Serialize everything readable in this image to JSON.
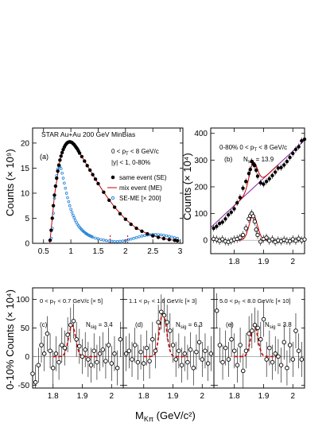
{
  "panels": {
    "a": {
      "header": "STAR Au+Au 200 GeV MinBias",
      "tag": "(a)",
      "cut1": "0 < p",
      "cut1_sub": "T",
      "cut1_tail": " < 8 GeV/c",
      "cut2": "|y| < 1,  0-80%",
      "ylabel": "Counts (× 10⁹)",
      "xticks": [
        "0.5",
        "1",
        "1.5",
        "2",
        "2.5",
        "3"
      ],
      "yticks": [
        "0",
        "5",
        "10",
        "15",
        "20"
      ],
      "legend": [
        "same event (SE)",
        "mix event (ME)",
        "SE-ME [× 200]"
      ]
    },
    "b": {
      "tag": "(b)",
      "cut": "0-80%   0 < p",
      "cut_sub": "T",
      "cut_tail": " < 8 GeV/c",
      "nsig_label": "N",
      "nsig_sub": "sig",
      "nsig_value": " = 13.9",
      "ylabel": "Counts (× 10⁴)",
      "xticks": [
        "1.8",
        "1.9",
        "2"
      ],
      "yticks": [
        "0",
        "100",
        "200",
        "300",
        "400"
      ]
    },
    "lower": {
      "ylabel": "0-10% Counts (× 10⁴)",
      "yticks": [
        "-50",
        "0",
        "50",
        "100"
      ],
      "xticks": [
        "1.8",
        "1.9",
        "2"
      ],
      "xlabel": "M",
      "xlabel_sub": "Kπ",
      "xlabel_tail": " (GeV/c²)",
      "c": {
        "tag": "(c)",
        "cut": "0 < p",
        "cut_sub": "T",
        "cut_tail": " < 0.7 GeV/c [× 5]",
        "nsig_label": "N",
        "nsig_sub": "sig",
        "nsig_value": " = 3.4"
      },
      "d": {
        "tag": "(d)",
        "cut": "1.1 < p",
        "cut_sub": "T",
        "cut_tail": " < 1.6 GeV/c [× 3]",
        "nsig_label": "N",
        "nsig_sub": "sig",
        "nsig_value": " = 6.3"
      },
      "e": {
        "tag": "(e)",
        "cut": "5.0 < p",
        "cut_sub": "T",
        "cut_tail": " < 8.0 GeV/c [× 10]",
        "nsig_label": "N",
        "nsig_sub": "sig",
        "nsig_value": " = 3.8"
      }
    }
  },
  "colors": {
    "same_event": "#000000",
    "mix_event": "#cc0000",
    "se_me": "#1a7fd6",
    "fit": "#cc0000",
    "bg_fit": "#8a1fa8"
  },
  "chart_data": [
    {
      "type": "scatter",
      "panel": "a",
      "xlim": [
        0.3,
        3.05
      ],
      "ylim": [
        0,
        23
      ],
      "series": [
        {
          "name": "same event (SE)",
          "x": [
            0.62,
            0.64,
            0.66,
            0.68,
            0.7,
            0.72,
            0.74,
            0.76,
            0.78,
            0.8,
            0.82,
            0.84,
            0.86,
            0.88,
            0.9,
            0.92,
            0.94,
            0.96,
            0.98,
            1.0,
            1.02,
            1.04,
            1.06,
            1.08,
            1.1,
            1.12,
            1.14,
            1.16,
            1.2,
            1.25,
            1.3,
            1.35,
            1.4,
            1.45,
            1.5,
            1.6,
            1.7,
            1.8,
            1.9,
            2.0,
            2.1,
            2.2,
            2.3,
            2.4,
            2.5,
            2.6,
            2.7,
            2.8,
            2.9,
            2.95
          ],
          "y": [
            0.6,
            2.6,
            5.0,
            7.5,
            9.6,
            11.4,
            13.0,
            14.4,
            15.6,
            16.6,
            17.4,
            18.1,
            18.7,
            19.2,
            19.6,
            19.9,
            20.1,
            20.2,
            20.25,
            20.2,
            20.1,
            19.9,
            19.7,
            19.4,
            19.1,
            18.8,
            18.4,
            18.0,
            17.3,
            16.4,
            15.5,
            14.6,
            13.7,
            12.8,
            11.9,
            10.2,
            8.6,
            7.2,
            5.9,
            4.8,
            3.8,
            3.0,
            2.4,
            1.9,
            1.5,
            1.2,
            0.95,
            0.75,
            0.6,
            0.5
          ]
        },
        {
          "name": "mix event (ME)",
          "x": [
            0.6,
            0.61,
            0.62,
            0.7,
            0.8,
            0.9,
            1.0,
            1.1,
            1.2,
            1.4,
            1.6,
            1.8,
            2.0,
            2.2,
            2.4,
            2.6,
            2.8,
            2.95
          ],
          "y": [
            0,
            0,
            0.6,
            9.6,
            16.6,
            19.6,
            20.2,
            19.1,
            17.3,
            13.7,
            10.2,
            7.2,
            4.8,
            3.0,
            1.9,
            1.2,
            0.75,
            0.5
          ]
        },
        {
          "name": "SE-ME [× 200]",
          "x": [
            0.64,
            0.66,
            0.68,
            0.7,
            0.72,
            0.74,
            0.76,
            0.78,
            0.8,
            0.82,
            0.84,
            0.86,
            0.88,
            0.9,
            0.92,
            0.94,
            0.96,
            0.98,
            1.0,
            1.02,
            1.04,
            1.06,
            1.08,
            1.1,
            1.12,
            1.14,
            1.16,
            1.18,
            1.2,
            1.22,
            1.24,
            1.26,
            1.28,
            1.3,
            1.32,
            1.34,
            1.36,
            1.38,
            1.4,
            1.45,
            1.5,
            1.55,
            1.6,
            1.65,
            1.7,
            1.75,
            1.8,
            1.85,
            1.9,
            1.95,
            2.0,
            2.05,
            2.1,
            2.15,
            2.2,
            2.25,
            2.3,
            2.35,
            2.4,
            2.45,
            2.5,
            2.55,
            2.6,
            2.65,
            2.7,
            2.75,
            2.8,
            2.85,
            2.9,
            2.95
          ],
          "y": [
            1.0,
            3.0,
            6.0,
            9.0,
            11.5,
            13.5,
            14.8,
            15.4,
            15.4,
            14.9,
            14.0,
            13.0,
            12.0,
            11.0,
            10.0,
            9.1,
            8.3,
            7.5,
            6.8,
            6.2,
            5.6,
            5.1,
            4.6,
            4.2,
            3.8,
            3.5,
            3.2,
            2.95,
            2.7,
            2.5,
            2.3,
            2.1,
            1.95,
            1.8,
            1.65,
            1.55,
            1.45,
            1.35,
            1.25,
            1.05,
            0.9,
            0.75,
            0.65,
            0.55,
            0.45,
            0.4,
            0.35,
            0.35,
            0.4,
            0.45,
            0.55,
            0.7,
            0.85,
            1.0,
            1.15,
            1.3,
            1.45,
            1.55,
            1.65,
            1.7,
            1.75,
            1.75,
            1.72,
            1.68,
            1.6,
            1.5,
            1.4,
            1.25,
            1.1,
            1.0
          ]
        }
      ]
    },
    {
      "type": "scatter",
      "panel": "b",
      "xlim": [
        1.72,
        2.04
      ],
      "ylim": [
        -50,
        420
      ],
      "series": [
        {
          "name": "",
          "x": [
            1.73,
            1.74,
            1.75,
            1.76,
            1.77,
            1.78,
            1.79,
            1.8,
            1.81,
            1.82,
            1.83,
            1.84,
            1.85,
            1.855,
            1.86,
            1.865,
            1.87,
            1.875,
            1.88,
            1.89,
            1.9,
            1.91,
            1.92,
            1.93,
            1.94,
            1.95,
            1.96,
            1.97,
            1.98,
            1.99,
            2.0,
            2.01,
            2.02,
            2.03,
            2.04
          ],
          "y": [
            45,
            52,
            63,
            68,
            80,
            95,
            105,
            118,
            140,
            160,
            195,
            220,
            250,
            265,
            295,
            285,
            280,
            262,
            240,
            215,
            210,
            220,
            230,
            242,
            255,
            270,
            272,
            282,
            295,
            310,
            325,
            340,
            350,
            372,
            378
          ]
        },
        {
          "name": "",
          "x": [
            1.73,
            1.74,
            1.75,
            1.76,
            1.77,
            1.78,
            1.79,
            1.8,
            1.81,
            1.82,
            1.83,
            1.84,
            1.85,
            1.855,
            1.86,
            1.865,
            1.87,
            1.875,
            1.88,
            1.89,
            1.9,
            1.91,
            1.92,
            1.93,
            1.94,
            1.95,
            1.96,
            1.97,
            1.98,
            1.99,
            2.0,
            2.01,
            2.02,
            2.03,
            2.04
          ],
          "y": [
            5,
            3,
            -2,
            4,
            -4,
            -6,
            -2,
            3,
            5,
            10,
            20,
            45,
            80,
            92,
            100,
            90,
            70,
            40,
            20,
            -5,
            5,
            10,
            -2,
            4,
            -6,
            0,
            -4,
            2,
            -2,
            -4,
            4,
            -2,
            6,
            0,
            3
          ]
        }
      ]
    },
    {
      "type": "scatter",
      "panel": "c",
      "xlim": [
        1.73,
        2.04
      ],
      "ylim": [
        -55,
        120
      ],
      "series": [
        {
          "name": "",
          "x": [
            1.73,
            1.74,
            1.75,
            1.76,
            1.77,
            1.78,
            1.79,
            1.8,
            1.81,
            1.82,
            1.83,
            1.84,
            1.85,
            1.86,
            1.87,
            1.88,
            1.89,
            1.9,
            1.91,
            1.92,
            1.93,
            1.94,
            1.95,
            1.96,
            1.97,
            1.98,
            1.99,
            2.0,
            2.01,
            2.02,
            2.03
          ],
          "y": [
            -30,
            -45,
            -15,
            20,
            5,
            40,
            10,
            -20,
            5,
            -10,
            20,
            15,
            38,
            55,
            62,
            30,
            18,
            0,
            12,
            -5,
            -15,
            10,
            -10,
            5,
            12,
            -8,
            20,
            -12,
            5,
            -20,
            30
          ]
        }
      ]
    },
    {
      "type": "scatter",
      "panel": "d",
      "xlim": [
        1.73,
        2.04
      ],
      "ylim": [
        -55,
        120
      ],
      "series": [
        {
          "name": "",
          "x": [
            1.74,
            1.75,
            1.76,
            1.77,
            1.78,
            1.79,
            1.8,
            1.81,
            1.82,
            1.83,
            1.84,
            1.85,
            1.86,
            1.87,
            1.88,
            1.89,
            1.9,
            1.91,
            1.92,
            1.93,
            1.94,
            1.95,
            1.96,
            1.97,
            1.98,
            1.99,
            2.0,
            2.01,
            2.02,
            2.03
          ],
          "y": [
            5,
            10,
            -5,
            20,
            -10,
            8,
            -12,
            15,
            -8,
            30,
            10,
            60,
            78,
            72,
            60,
            45,
            20,
            -5,
            10,
            -15,
            5,
            -10,
            12,
            -20,
            8,
            25,
            -5,
            10,
            -12,
            5
          ]
        }
      ]
    },
    {
      "type": "scatter",
      "panel": "e",
      "xlim": [
        1.73,
        2.04
      ],
      "ylim": [
        -55,
        120
      ],
      "series": [
        {
          "name": "",
          "x": [
            1.74,
            1.75,
            1.76,
            1.77,
            1.78,
            1.79,
            1.8,
            1.81,
            1.82,
            1.83,
            1.84,
            1.85,
            1.86,
            1.87,
            1.88,
            1.89,
            1.9,
            1.91,
            1.92,
            1.93,
            1.94,
            1.95,
            1.96,
            1.97,
            1.98,
            1.99,
            2.0,
            2.01,
            2.02,
            2.03
          ],
          "y": [
            80,
            20,
            -10,
            15,
            -5,
            30,
            10,
            -15,
            20,
            -25,
            10,
            40,
            45,
            55,
            50,
            30,
            65,
            -5,
            15,
            -10,
            5,
            0,
            -15,
            25,
            -20,
            20,
            -5,
            45,
            10,
            -5
          ]
        }
      ]
    }
  ]
}
